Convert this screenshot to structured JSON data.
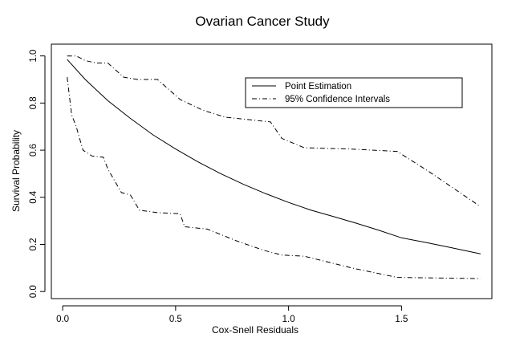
{
  "chart_data": {
    "type": "line",
    "title": "Ovarian Cancer Study",
    "xlabel": "Cox-Snell Residuals",
    "ylabel": "Survival Probability",
    "xlim": [
      -0.05,
      1.9
    ],
    "ylim": [
      -0.03,
      1.05
    ],
    "xticks": [
      0.0,
      0.5,
      1.0,
      1.5
    ],
    "xtick_labels": [
      "0.0",
      "0.5",
      "1.0",
      "1.5"
    ],
    "yticks": [
      0.0,
      0.2,
      0.4,
      0.6,
      0.8,
      1.0
    ],
    "ytick_labels": [
      "0.0",
      "0.2",
      "0.4",
      "0.6",
      "0.8",
      "1.0"
    ],
    "grid": false,
    "legend_position": "top-right",
    "series": [
      {
        "name": "Point Estimation",
        "style": "solid",
        "x": [
          0.02,
          0.1,
          0.2,
          0.3,
          0.4,
          0.5,
          0.6,
          0.7,
          0.8,
          0.9,
          1.0,
          1.1,
          1.2,
          1.3,
          1.4,
          1.5,
          1.6,
          1.7,
          1.85
        ],
        "y": [
          0.985,
          0.9,
          0.81,
          0.735,
          0.665,
          0.605,
          0.55,
          0.5,
          0.455,
          0.415,
          0.378,
          0.345,
          0.318,
          0.29,
          0.26,
          0.228,
          0.21,
          0.19,
          0.16
        ]
      },
      {
        "name": "95% Confidence Intervals",
        "style": "dashdot",
        "x": [
          0.02,
          0.06,
          0.1,
          0.15,
          0.2,
          0.27,
          0.33,
          0.42,
          0.52,
          0.62,
          0.72,
          0.82,
          0.92,
          0.97,
          1.07,
          1.27,
          1.48,
          1.62,
          1.85
        ],
        "y": [
          1.0,
          1.0,
          0.98,
          0.97,
          0.97,
          0.91,
          0.9,
          0.9,
          0.815,
          0.77,
          0.74,
          0.73,
          0.72,
          0.65,
          0.61,
          0.605,
          0.595,
          0.51,
          0.36
        ]
      },
      {
        "name": "95% Confidence Intervals",
        "style": "dashdot",
        "x": [
          0.02,
          0.04,
          0.06,
          0.09,
          0.13,
          0.18,
          0.2,
          0.26,
          0.3,
          0.34,
          0.42,
          0.52,
          0.54,
          0.64,
          0.77,
          0.89,
          0.97,
          1.07,
          1.28,
          1.48,
          1.85
        ],
        "y": [
          0.91,
          0.75,
          0.7,
          0.6,
          0.575,
          0.57,
          0.52,
          0.42,
          0.41,
          0.345,
          0.335,
          0.33,
          0.275,
          0.265,
          0.215,
          0.175,
          0.155,
          0.15,
          0.1,
          0.06,
          0.055
        ]
      }
    ],
    "legend_entries": [
      {
        "label": "Point Estimation",
        "style": "solid"
      },
      {
        "label": "95% Confidence Intervals",
        "style": "dashdot"
      }
    ]
  }
}
